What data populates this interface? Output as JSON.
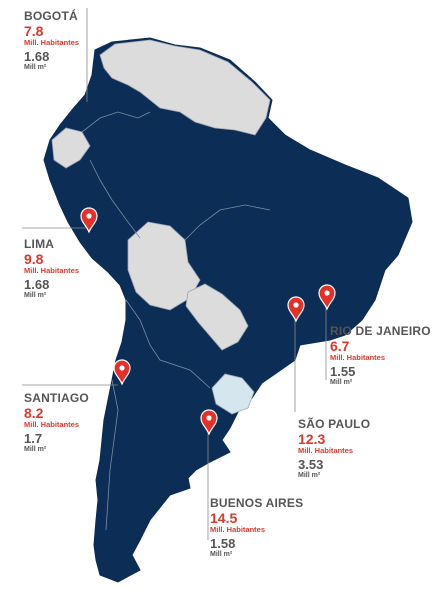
{
  "colors": {
    "data_country": "#0c2d55",
    "other_country": "#dcdcdc",
    "uruguay": "#d6e6ee",
    "border": "#9aa4b3",
    "pin": "#e0322b",
    "population_text": "#d63a2f",
    "label_text": "#555555",
    "leader_line": "#8a8a8a"
  },
  "icons": {
    "marker": "map-pin-icon"
  },
  "cities": [
    {
      "id": "bogota",
      "name": "BOGOTÁ",
      "population": "7.8",
      "population_unit": "Mill. Habitantes",
      "area": "1.68",
      "area_unit": "Mill m²"
    },
    {
      "id": "lima",
      "name": "LIMA",
      "population": "9.8",
      "population_unit": "Mill. Habitantes",
      "area": "1.68",
      "area_unit": "Mill m²"
    },
    {
      "id": "santiago",
      "name": "SANTIAGO",
      "population": "8.2",
      "population_unit": "Mill. Habitantes",
      "area": "1.7",
      "area_unit": "Mill m²"
    },
    {
      "id": "buenos-aires",
      "name": "BUENOS AIRES",
      "population": "14.5",
      "population_unit": "Mill. Habitantes",
      "area": "1.58",
      "area_unit": "Mill m²"
    },
    {
      "id": "sao-paulo",
      "name": "SÃO PAULO",
      "population": "12.3",
      "population_unit": "Mill. Habitantes",
      "area": "3.53",
      "area_unit": "Mill m²"
    },
    {
      "id": "rio-de-janeiro",
      "name": "RIO DE JANEIRO",
      "population": "6.7",
      "population_unit": "Mill. Habitantes",
      "area": "1.55",
      "area_unit": "Mill m²"
    }
  ]
}
